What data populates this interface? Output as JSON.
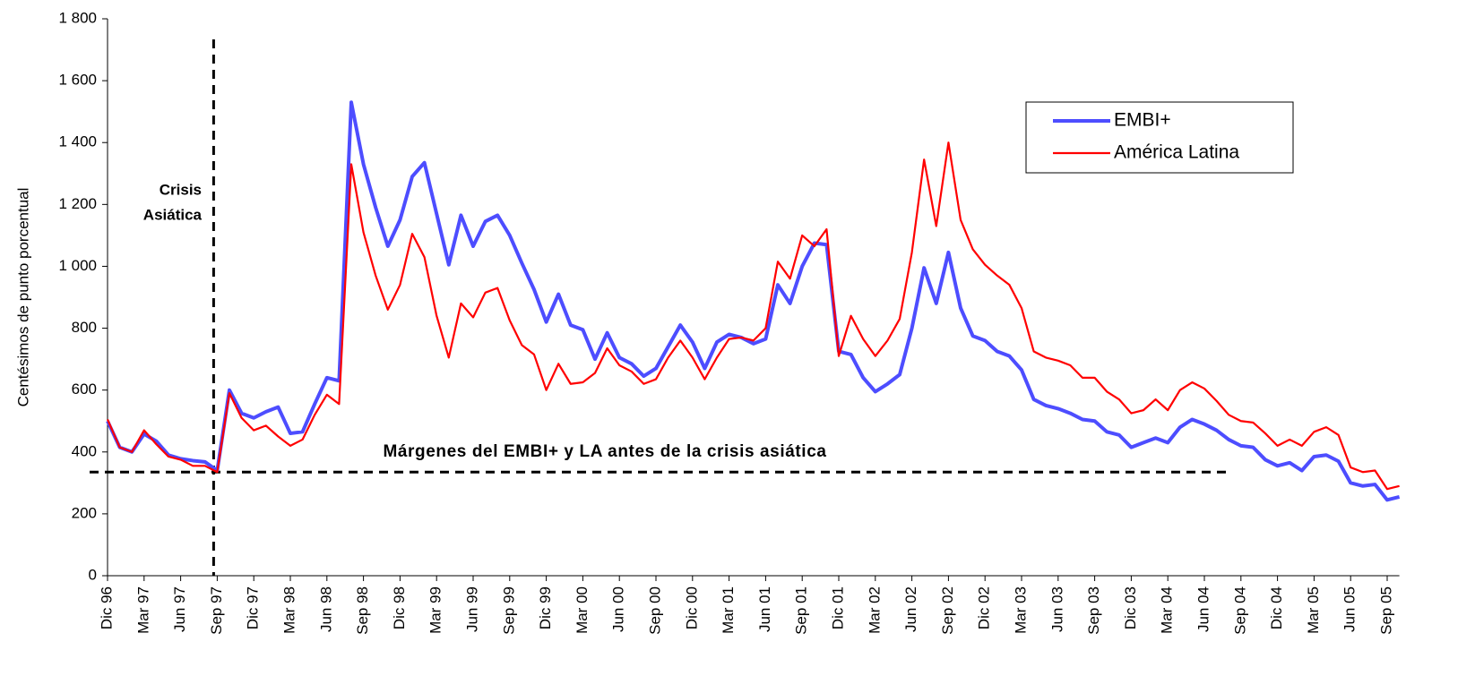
{
  "chart_data": {
    "type": "line",
    "y_label": "Centésimos de punto porcentual",
    "annotations": [
      {
        "lines": [
          "Crisis",
          "Asiática"
        ]
      },
      {
        "lines": [
          "Márgenes del EMBI+ y LA antes de la crisis asiática"
        ]
      }
    ],
    "vline_category": "Sep 97",
    "hline": 335,
    "categories": [
      "Dic 96",
      null,
      null,
      "Mar 97",
      null,
      null,
      "Jun 97",
      null,
      null,
      "Sep 97",
      null,
      null,
      "Dic 97",
      null,
      null,
      "Mar 98",
      null,
      null,
      "Jun 98",
      null,
      null,
      "Sep 98",
      null,
      null,
      "Dic 98",
      null,
      null,
      "Mar 99",
      null,
      null,
      "Jun 99",
      null,
      null,
      "Sep 99",
      null,
      null,
      "Dic 99",
      null,
      null,
      "Mar 00",
      null,
      null,
      "Jun 00",
      null,
      null,
      "Sep 00",
      null,
      null,
      "Dic 00",
      null,
      null,
      "Mar 01",
      null,
      null,
      "Jun 01",
      null,
      null,
      "Sep 01",
      null,
      null,
      "Dic 01",
      null,
      null,
      "Mar 02",
      null,
      null,
      "Jun 02",
      null,
      null,
      "Sep 02",
      null,
      null,
      "Dic 02",
      null,
      null,
      "Mar 03",
      null,
      null,
      "Jun 03",
      null,
      null,
      "Sep 03",
      null,
      null,
      "Dic 03",
      null,
      null,
      "Mar 04",
      null,
      null,
      "Jun 04",
      null,
      null,
      "Sep 04",
      null,
      null,
      "Dic 04",
      null,
      null,
      "Mar 05",
      null,
      null,
      "Jun 05",
      null,
      null,
      "Sep 05",
      null
    ],
    "series": [
      {
        "name": "EMBI+",
        "color": "#4d4dff",
        "width": 4,
        "values": [
          500,
          415,
          400,
          458,
          435,
          390,
          378,
          372,
          368,
          340,
          600,
          525,
          510,
          530,
          545,
          460,
          465,
          555,
          640,
          630,
          1530,
          1330,
          1190,
          1065,
          1150,
          1290,
          1335,
          1170,
          1005,
          1165,
          1065,
          1145,
          1165,
          1100,
          1010,
          925,
          820,
          910,
          810,
          795,
          700,
          785,
          705,
          685,
          645,
          670,
          740,
          810,
          755,
          670,
          755,
          780,
          770,
          750,
          765,
          940,
          880,
          1000,
          1075,
          1070,
          725,
          715,
          640,
          595,
          620,
          650,
          800,
          995,
          880,
          1045,
          865,
          775,
          760,
          725,
          710,
          665,
          570,
          550,
          540,
          525,
          505,
          500,
          465,
          455,
          415,
          430,
          445,
          430,
          480,
          505,
          490,
          470,
          440,
          420,
          415,
          375,
          355,
          365,
          340,
          385,
          390,
          370,
          300,
          290,
          295,
          245,
          255
        ]
      },
      {
        "name": "América Latina",
        "color": "#ff0000",
        "width": 2.2,
        "values": [
          505,
          415,
          400,
          470,
          425,
          385,
          375,
          355,
          355,
          335,
          590,
          510,
          470,
          485,
          450,
          420,
          440,
          520,
          585,
          555,
          1330,
          1110,
          970,
          860,
          940,
          1105,
          1030,
          840,
          705,
          880,
          835,
          915,
          930,
          825,
          745,
          715,
          600,
          685,
          620,
          625,
          655,
          735,
          680,
          660,
          620,
          635,
          705,
          760,
          705,
          635,
          705,
          765,
          770,
          760,
          800,
          1015,
          960,
          1100,
          1065,
          1120,
          710,
          840,
          765,
          710,
          760,
          830,
          1045,
          1345,
          1130,
          1400,
          1150,
          1055,
          1005,
          970,
          940,
          865,
          725,
          705,
          695,
          680,
          640,
          640,
          595,
          570,
          525,
          535,
          570,
          535,
          600,
          625,
          605,
          565,
          520,
          500,
          495,
          460,
          420,
          440,
          420,
          465,
          480,
          455,
          350,
          335,
          340,
          280,
          290
        ]
      }
    ],
    "ylim": [
      0,
      1800
    ],
    "yticks": [
      0,
      200,
      400,
      600,
      800,
      {
        "value": 1000,
        "label": "1 000"
      },
      {
        "value": 1200,
        "label": "1 200"
      },
      {
        "value": 1400,
        "label": "1 400"
      },
      {
        "value": 1600,
        "label": "1 600"
      },
      {
        "value": 1800,
        "label": "1 800"
      }
    ],
    "legend": "upper-right"
  }
}
